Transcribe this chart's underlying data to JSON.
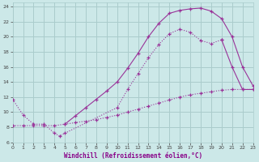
{
  "xlabel": "Windchill (Refroidissement éolien,°C)",
  "bg_color": "#cce8e8",
  "grid_color": "#aacccc",
  "line_color": "#993399",
  "xlim": [
    0,
    23
  ],
  "ylim": [
    6,
    24.5
  ],
  "xticks": [
    0,
    1,
    2,
    3,
    4,
    5,
    6,
    7,
    8,
    9,
    10,
    11,
    12,
    13,
    14,
    15,
    16,
    17,
    18,
    19,
    20,
    21,
    22,
    23
  ],
  "yticks": [
    6,
    8,
    10,
    12,
    14,
    16,
    18,
    20,
    22,
    24
  ],
  "line1_x": [
    0,
    1,
    2,
    3,
    4,
    4.5,
    5,
    10,
    11,
    12,
    13,
    14,
    15,
    16,
    17,
    18,
    19,
    20
  ],
  "line1_y": [
    11.7,
    9.6,
    8.4,
    8.4,
    7.2,
    6.8,
    7.2,
    10.6,
    13.0,
    15.1,
    17.2,
    19.0,
    20.4,
    21.0,
    20.6,
    19.5,
    19.1,
    19.6
  ],
  "line2_x": [
    0,
    1,
    2,
    3,
    4,
    5,
    6,
    7,
    8,
    9,
    10,
    11,
    12,
    13,
    14,
    15,
    16,
    17,
    18,
    19,
    20,
    21,
    22,
    23
  ],
  "line2_y": [
    8.2,
    8.2,
    8.2,
    8.2,
    8.2,
    8.4,
    8.6,
    8.8,
    9.0,
    9.3,
    9.6,
    10.0,
    10.4,
    10.8,
    11.2,
    11.6,
    12.0,
    12.3,
    12.5,
    12.7,
    12.9,
    13.0,
    13.0,
    13.0
  ],
  "line3_x": [
    5,
    6,
    7,
    8,
    9,
    10,
    11,
    12,
    13,
    14,
    15,
    16,
    17,
    18,
    19,
    20,
    21,
    22,
    23
  ],
  "line3_y": [
    8.4,
    9.5,
    10.6,
    11.7,
    12.8,
    14.0,
    15.8,
    17.8,
    20.0,
    21.8,
    23.1,
    23.5,
    23.7,
    23.8,
    23.4,
    22.4,
    20.0,
    16.0,
    13.5
  ],
  "line4_x": [
    20,
    21,
    22,
    23
  ],
  "line4_y": [
    19.6,
    16.0,
    13.0,
    13.0
  ]
}
